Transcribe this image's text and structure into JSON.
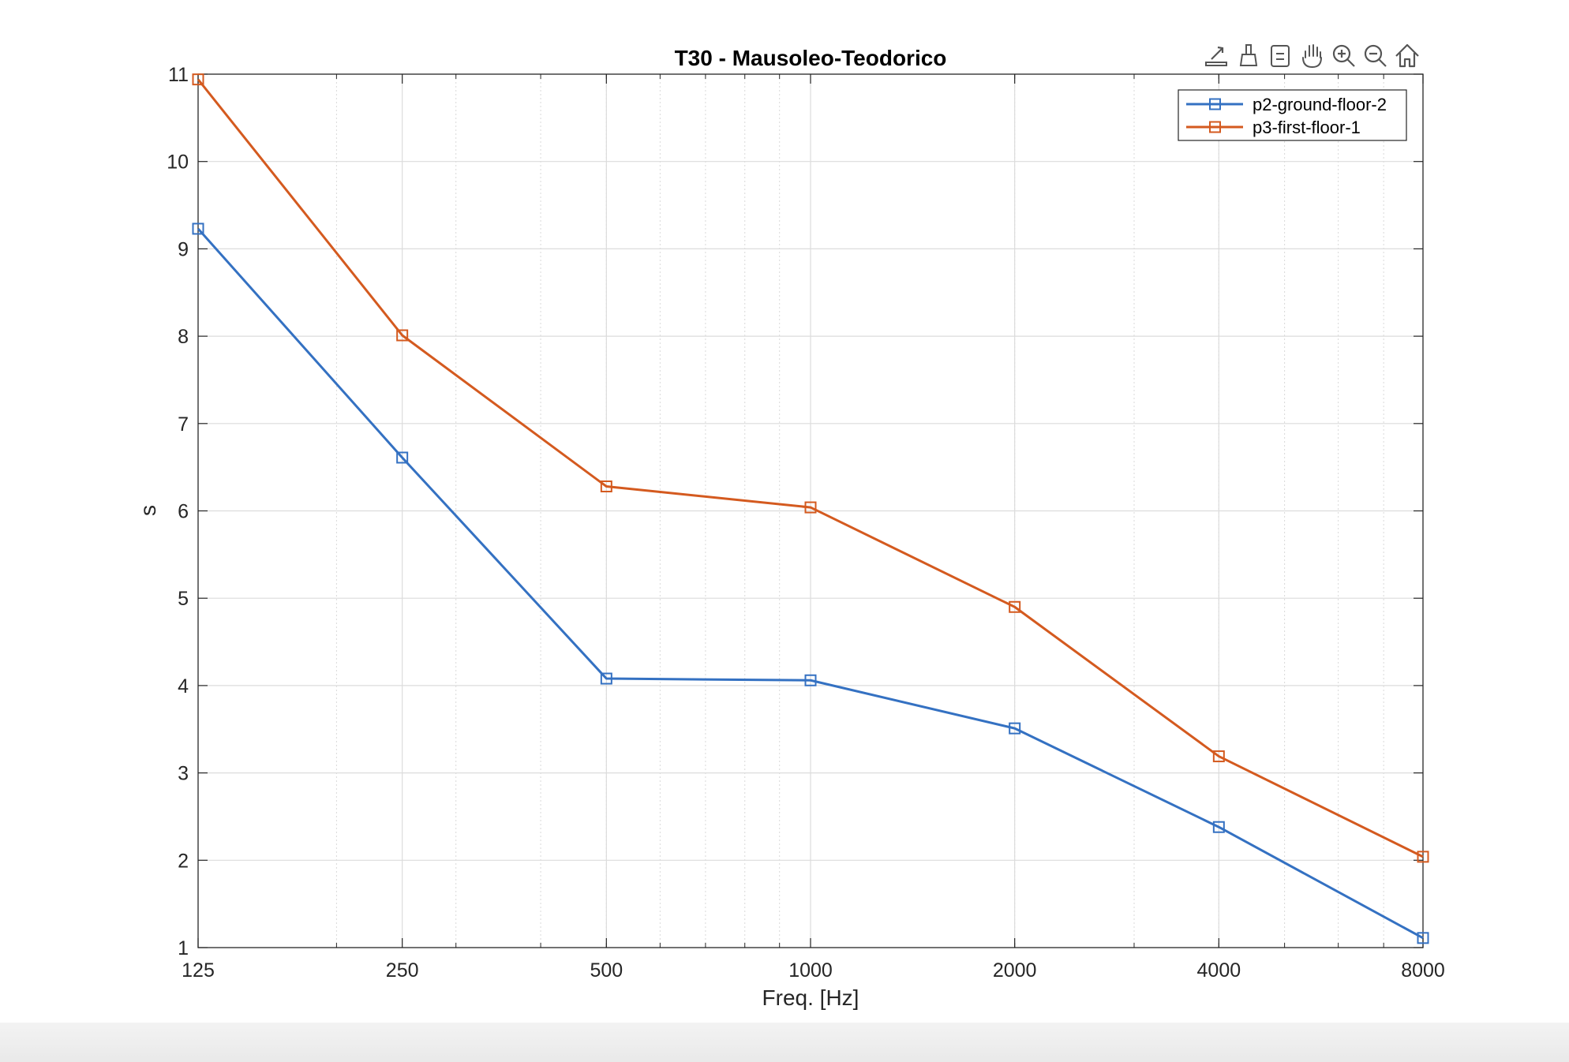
{
  "chart_data": {
    "type": "line",
    "title": "T30 - Mausoleo-Teodorico",
    "xlabel": "Freq. [Hz]",
    "ylabel": "s",
    "x": [
      125,
      250,
      500,
      1000,
      2000,
      4000,
      8000
    ],
    "xscale": "log2",
    "xlim": [
      125,
      8000
    ],
    "ylim": [
      1,
      11
    ],
    "xticks": [
      "125",
      "250",
      "500",
      "1000",
      "2000",
      "4000",
      "8000"
    ],
    "yticks": [
      "1",
      "2",
      "3",
      "4",
      "5",
      "6",
      "7",
      "8",
      "9",
      "10",
      "11"
    ],
    "grid": true,
    "legend_position": "top-right",
    "series": [
      {
        "name": "p2-ground-floor-2",
        "color": "#3471c2",
        "marker": "square",
        "values": [
          9.23,
          6.61,
          4.08,
          4.06,
          3.51,
          2.38,
          1.11
        ]
      },
      {
        "name": "p3-first-floor-1",
        "color": "#d45a1f",
        "marker": "square",
        "values": [
          10.94,
          8.01,
          6.28,
          6.04,
          4.9,
          3.19,
          2.04
        ]
      }
    ]
  },
  "toolbar": {
    "icons": [
      "export-icon",
      "brush-icon",
      "datatip-icon",
      "pan-icon",
      "zoom-in-icon",
      "zoom-out-icon",
      "home-icon"
    ]
  }
}
